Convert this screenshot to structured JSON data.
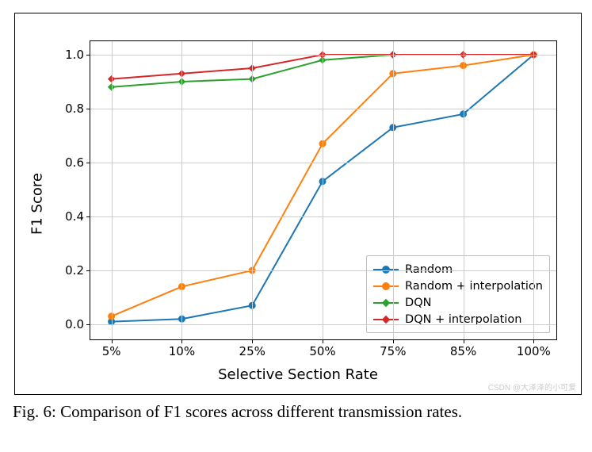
{
  "chart": {
    "type": "line",
    "title": null,
    "x_categories": [
      "5%",
      "10%",
      "25%",
      "50%",
      "75%",
      "85%",
      "100%"
    ],
    "x_positions": [
      0,
      1,
      2,
      3,
      4,
      5,
      6
    ],
    "y_ticks": [
      0.0,
      0.2,
      0.4,
      0.6,
      0.8,
      1.0
    ],
    "y_tick_labels": [
      "0.0",
      "0.2",
      "0.4",
      "0.6",
      "0.8",
      "1.0"
    ],
    "xlim": [
      -0.3,
      6.3
    ],
    "ylim": [
      -0.05,
      1.05
    ],
    "xlabel": "Selective Section Rate",
    "ylabel": "F1 Score",
    "label_fontsize": 18,
    "tick_fontsize": 15,
    "grid": true,
    "grid_color": "#cccccc",
    "background_color": "#ffffff",
    "axis_color": "#000000",
    "line_width": 2,
    "marker_size": 8,
    "series": [
      {
        "name": "Random",
        "color": "#1f77b4",
        "marker": "circle",
        "values": [
          0.01,
          0.02,
          0.07,
          0.53,
          0.73,
          0.78,
          1.0
        ]
      },
      {
        "name": "Random + interpolation",
        "color": "#ff7f0e",
        "marker": "circle",
        "values": [
          0.03,
          0.14,
          0.2,
          0.67,
          0.93,
          0.96,
          1.0
        ]
      },
      {
        "name": "DQN",
        "color": "#2ca02c",
        "marker": "diamond",
        "values": [
          0.88,
          0.9,
          0.91,
          0.98,
          1.0,
          1.0,
          1.0
        ]
      },
      {
        "name": "DQN + interpolation",
        "color": "#d62728",
        "marker": "diamond",
        "values": [
          0.91,
          0.93,
          0.95,
          1.0,
          1.0,
          1.0,
          1.0
        ]
      }
    ],
    "legend": {
      "position": "bottom-right",
      "fontsize": 14.5,
      "border_color": "#bfbfbf",
      "background": "#ffffff"
    }
  },
  "caption": "Fig. 6: Comparison of F1 scores across different transmission rates.",
  "watermark": "CSDN @大泽泽的小可爱"
}
